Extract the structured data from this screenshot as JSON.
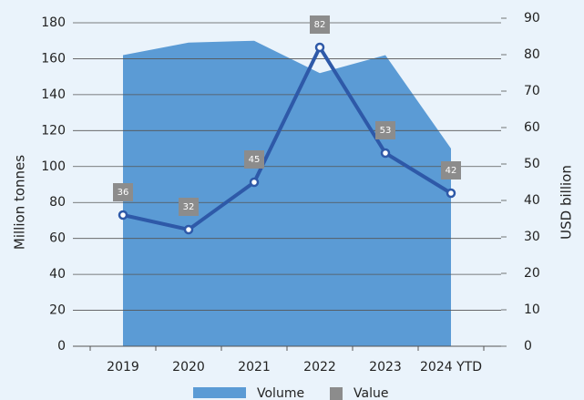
{
  "chart_data": {
    "type": "area-line",
    "categories": [
      "2019",
      "2020",
      "2021",
      "2022",
      "2023",
      "2024 YTD"
    ],
    "series": [
      {
        "name": "Volume",
        "color": "#5b9bd5",
        "values": [
          162,
          169,
          170,
          152,
          162,
          110
        ]
      },
      {
        "name": "Value",
        "color": "#2e59a8",
        "axis": "y2",
        "values": [
          36,
          32,
          45,
          82,
          53,
          42
        ]
      }
    ],
    "label_color": "#8c8c8c",
    "ylabel": "Million tonnes",
    "y2label": "USD billion",
    "ylim": [
      0,
      180
    ],
    "yticks": [
      0,
      20,
      40,
      60,
      80,
      100,
      120,
      140,
      160,
      180
    ],
    "y2lim": [
      0,
      90
    ],
    "y2ticks": [
      0,
      10,
      20,
      30,
      40,
      50,
      60,
      70,
      80,
      90
    ],
    "grid": true
  }
}
